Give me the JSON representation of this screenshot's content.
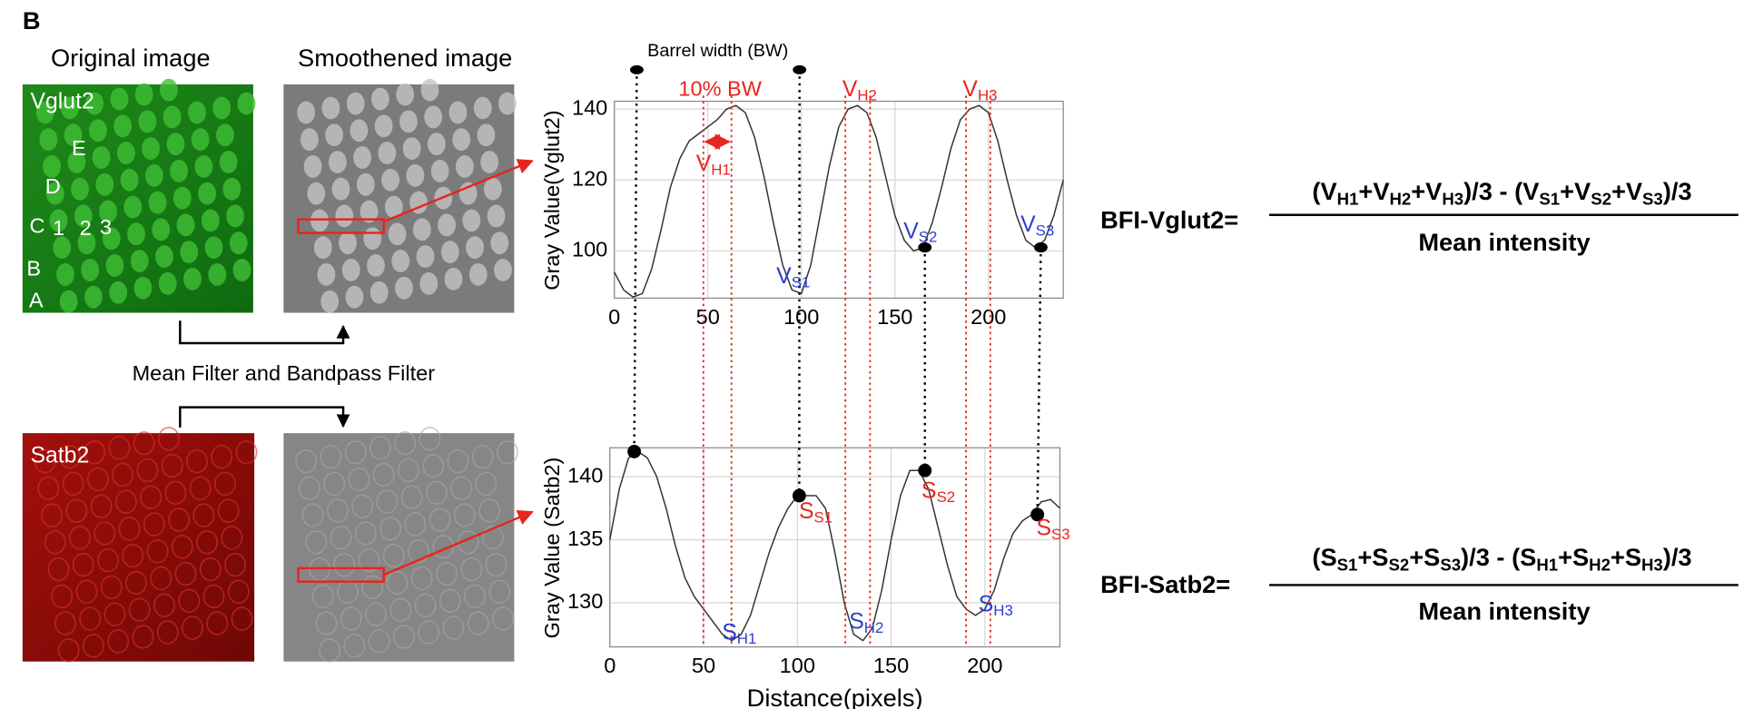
{
  "panel_label": "B",
  "images": {
    "original_title": "Original image",
    "smoothed_title": "Smoothened image",
    "vglut2_label": "Vglut2",
    "satb2_label": "Satb2",
    "region_labels": [
      "E",
      "D",
      "C",
      "1",
      "2",
      "3",
      "B",
      "A"
    ],
    "filter_label": "Mean Filter and Bandpass Filter"
  },
  "chart_data": [
    {
      "type": "line",
      "ylabel": "Gray Value(Vglut2)",
      "color": "#333333",
      "grid": true,
      "x": [
        0,
        5,
        10,
        15,
        20,
        25,
        30,
        35,
        40,
        45,
        50,
        55,
        60,
        65,
        70,
        75,
        80,
        85,
        90,
        95,
        100,
        105,
        110,
        115,
        120,
        125,
        130,
        135,
        140,
        145,
        150,
        155,
        160,
        165,
        170,
        175,
        180,
        185,
        190,
        195,
        200,
        205,
        210,
        215,
        220,
        225,
        230,
        235,
        240
      ],
      "y": [
        94,
        89,
        87,
        88,
        95,
        106,
        118,
        126,
        131,
        133,
        135,
        137,
        140,
        141,
        139,
        132,
        121,
        108,
        96,
        89,
        88,
        96,
        110,
        124,
        135,
        140,
        141,
        139,
        132,
        121,
        110,
        103,
        100,
        101,
        108,
        118,
        129,
        137,
        140,
        141,
        139,
        131,
        120,
        110,
        103,
        101,
        103,
        110,
        120
      ],
      "xlim": [
        0,
        240
      ],
      "ylim": [
        86.7,
        142.2
      ],
      "xticks": [
        0,
        50,
        100,
        150,
        200
      ],
      "yticks": [
        100,
        120,
        140
      ],
      "pin_label": "Barrel width (BW)",
      "pins_x": [
        12,
        99
      ],
      "markers": {
        "x": [
          166,
          228
        ],
        "y": [
          101,
          101
        ]
      },
      "band_label": "10% BW",
      "vlines": [
        47.6,
        62.6,
        123.5,
        136.7,
        188,
        201
      ],
      "vline_color": "#e8251e",
      "annotations": [
        {
          "base": "V",
          "sub": "H1",
          "color": "#e8251e"
        },
        {
          "base": "V",
          "sub": "H2",
          "color": "#e8251e"
        },
        {
          "base": "V",
          "sub": "H3",
          "color": "#e8251e"
        },
        {
          "base": "V",
          "sub": "S1",
          "color": "#2a3fd0"
        },
        {
          "base": "V",
          "sub": "S2",
          "color": "#2a3fd0"
        },
        {
          "base": "V",
          "sub": "S3",
          "color": "#2a3fd0"
        }
      ]
    },
    {
      "type": "line",
      "ylabel": "Gray Value (Satb2)",
      "xlabel": "Distance(pixels)",
      "color": "#333333",
      "grid": true,
      "x": [
        0,
        5,
        10,
        15,
        20,
        25,
        30,
        35,
        40,
        45,
        50,
        55,
        60,
        65,
        70,
        75,
        80,
        85,
        90,
        95,
        100,
        105,
        110,
        115,
        120,
        125,
        130,
        135,
        140,
        145,
        150,
        155,
        160,
        165,
        170,
        175,
        180,
        185,
        190,
        195,
        200,
        205,
        210,
        215,
        220,
        225,
        230,
        235,
        240
      ],
      "y": [
        135,
        139,
        141.5,
        142,
        141.5,
        140,
        137.5,
        134.5,
        132,
        130.5,
        129.5,
        128.5,
        127.5,
        127,
        127.5,
        129,
        131.5,
        134,
        136,
        137.5,
        138.5,
        138.5,
        138.5,
        137.5,
        134,
        130,
        127.5,
        127,
        128,
        131,
        135,
        138.5,
        140.5,
        140.5,
        139,
        136,
        133,
        130.5,
        129.5,
        129,
        129.5,
        131,
        133.5,
        135.5,
        136.5,
        137,
        138,
        138.2,
        137.5
      ],
      "xlim": [
        0,
        240
      ],
      "ylim": [
        126.5,
        142.3
      ],
      "xticks": [
        0,
        50,
        100,
        150,
        200
      ],
      "yticks": [
        130,
        135,
        140
      ],
      "markers": {
        "x": [
          13,
          101,
          168,
          228
        ],
        "y": [
          142,
          138.5,
          140.5,
          137
        ]
      },
      "annotations": [
        {
          "base": "S",
          "sub": "S1",
          "color": "#e8251e"
        },
        {
          "base": "S",
          "sub": "S2",
          "color": "#e8251e"
        },
        {
          "base": "S",
          "sub": "S3",
          "color": "#e8251e"
        },
        {
          "base": "S",
          "sub": "H1",
          "color": "#2a3fd0"
        },
        {
          "base": "S",
          "sub": "H2",
          "color": "#2a3fd0"
        },
        {
          "base": "S",
          "sub": "H3",
          "color": "#2a3fd0"
        }
      ]
    }
  ],
  "formulas": [
    {
      "lhs": "BFI-Vglut2=",
      "numerator": [
        {
          "t": "(V"
        },
        {
          "sub": "H1"
        },
        {
          "t": "+V"
        },
        {
          "sub": "H2"
        },
        {
          "t": "+V"
        },
        {
          "sub": "H3"
        },
        {
          "t": ")/3 - (V"
        },
        {
          "sub": "S1"
        },
        {
          "t": "+V"
        },
        {
          "sub": "S2"
        },
        {
          "t": "+V"
        },
        {
          "sub": "S3"
        },
        {
          "t": ")/3"
        }
      ],
      "denominator": "Mean intensity"
    },
    {
      "lhs": "BFI-Satb2=",
      "numerator": [
        {
          "t": "(S"
        },
        {
          "sub": "S1"
        },
        {
          "t": "+S"
        },
        {
          "sub": "S2"
        },
        {
          "t": "+S"
        },
        {
          "sub": "S3"
        },
        {
          "t": ")/3 - (S"
        },
        {
          "sub": "H1"
        },
        {
          "t": "+S"
        },
        {
          "sub": "H2"
        },
        {
          "t": "+S"
        },
        {
          "sub": "H3"
        },
        {
          "t": ")/3"
        }
      ],
      "denominator": "Mean intensity"
    }
  ]
}
